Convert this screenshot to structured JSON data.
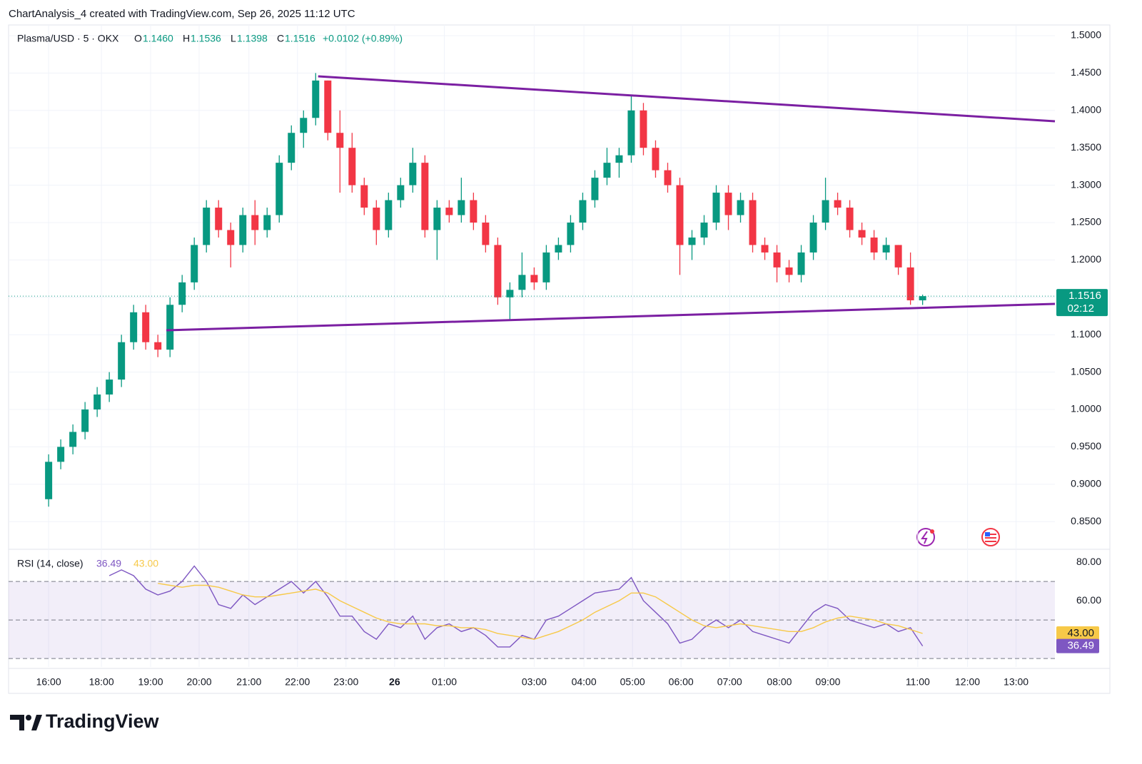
{
  "header": {
    "title": "ChartAnalysis_4 created with TradingView.com, Sep 26, 2025 11:12 UTC"
  },
  "brand": "TradingView",
  "chart_data": [
    {
      "type": "candlestick",
      "legend": {
        "symbol": "Plasma/USD · 5 · OKX",
        "o_label": "O",
        "open": "1.1460",
        "h_label": "H",
        "high": "1.1536",
        "l_label": "L",
        "low": "1.1398",
        "c_label": "C",
        "close": "1.1516",
        "change": "+0.0102 (+0.89%)"
      },
      "price_tag": {
        "label": "1.1516",
        "countdown": "02:12"
      },
      "up_color": "#089981",
      "down_color": "#f23645",
      "grid": true,
      "x": [
        3,
        4,
        5,
        6,
        7,
        8,
        9,
        10,
        11,
        12,
        13,
        14,
        15,
        16,
        17,
        18,
        19,
        20,
        21,
        22,
        23,
        24,
        25,
        26,
        27,
        28,
        29,
        30,
        31,
        32,
        33,
        34,
        35,
        36,
        37,
        38,
        39,
        40,
        41,
        42,
        43,
        44,
        45,
        46,
        47,
        48,
        49,
        50,
        51,
        52,
        53,
        54,
        55,
        56,
        57,
        58,
        59,
        60,
        61,
        62,
        63,
        64,
        65,
        66,
        67,
        68,
        69,
        70,
        71,
        72,
        73,
        74,
        75
      ],
      "ohlc": [
        [
          0.88,
          0.94,
          0.87,
          0.93
        ],
        [
          0.93,
          0.96,
          0.92,
          0.95
        ],
        [
          0.95,
          0.98,
          0.94,
          0.97
        ],
        [
          0.97,
          1.01,
          0.96,
          1.0
        ],
        [
          1.0,
          1.03,
          0.99,
          1.02
        ],
        [
          1.02,
          1.05,
          1.01,
          1.04
        ],
        [
          1.04,
          1.1,
          1.03,
          1.09
        ],
        [
          1.09,
          1.14,
          1.08,
          1.13
        ],
        [
          1.13,
          1.14,
          1.08,
          1.09
        ],
        [
          1.09,
          1.1,
          1.07,
          1.08
        ],
        [
          1.08,
          1.15,
          1.07,
          1.14
        ],
        [
          1.14,
          1.18,
          1.13,
          1.17
        ],
        [
          1.17,
          1.23,
          1.16,
          1.22
        ],
        [
          1.22,
          1.28,
          1.21,
          1.27
        ],
        [
          1.27,
          1.28,
          1.23,
          1.24
        ],
        [
          1.24,
          1.25,
          1.19,
          1.22
        ],
        [
          1.22,
          1.27,
          1.21,
          1.26
        ],
        [
          1.26,
          1.28,
          1.22,
          1.24
        ],
        [
          1.24,
          1.27,
          1.23,
          1.26
        ],
        [
          1.26,
          1.34,
          1.25,
          1.33
        ],
        [
          1.33,
          1.38,
          1.32,
          1.37
        ],
        [
          1.37,
          1.4,
          1.35,
          1.39
        ],
        [
          1.39,
          1.45,
          1.38,
          1.44
        ],
        [
          1.44,
          1.44,
          1.36,
          1.37
        ],
        [
          1.37,
          1.4,
          1.29,
          1.35
        ],
        [
          1.35,
          1.37,
          1.29,
          1.3
        ],
        [
          1.3,
          1.31,
          1.26,
          1.27
        ],
        [
          1.27,
          1.28,
          1.22,
          1.24
        ],
        [
          1.24,
          1.29,
          1.23,
          1.28
        ],
        [
          1.28,
          1.31,
          1.27,
          1.3
        ],
        [
          1.3,
          1.35,
          1.29,
          1.33
        ],
        [
          1.33,
          1.34,
          1.23,
          1.24
        ],
        [
          1.24,
          1.28,
          1.2,
          1.27
        ],
        [
          1.27,
          1.28,
          1.25,
          1.26
        ],
        [
          1.26,
          1.31,
          1.25,
          1.28
        ],
        [
          1.28,
          1.29,
          1.24,
          1.25
        ],
        [
          1.25,
          1.26,
          1.21,
          1.22
        ],
        [
          1.22,
          1.23,
          1.14,
          1.15
        ],
        [
          1.15,
          1.17,
          1.12,
          1.16
        ],
        [
          1.16,
          1.21,
          1.15,
          1.18
        ],
        [
          1.18,
          1.19,
          1.16,
          1.17
        ],
        [
          1.17,
          1.22,
          1.16,
          1.21
        ],
        [
          1.21,
          1.23,
          1.2,
          1.22
        ],
        [
          1.22,
          1.26,
          1.21,
          1.25
        ],
        [
          1.25,
          1.29,
          1.24,
          1.28
        ],
        [
          1.28,
          1.32,
          1.27,
          1.31
        ],
        [
          1.31,
          1.35,
          1.3,
          1.33
        ],
        [
          1.33,
          1.35,
          1.31,
          1.34
        ],
        [
          1.34,
          1.42,
          1.33,
          1.4
        ],
        [
          1.4,
          1.41,
          1.34,
          1.35
        ],
        [
          1.35,
          1.36,
          1.31,
          1.32
        ],
        [
          1.32,
          1.33,
          1.29,
          1.3
        ],
        [
          1.3,
          1.31,
          1.18,
          1.22
        ],
        [
          1.22,
          1.24,
          1.2,
          1.23
        ],
        [
          1.23,
          1.26,
          1.22,
          1.25
        ],
        [
          1.25,
          1.3,
          1.24,
          1.29
        ],
        [
          1.29,
          1.3,
          1.24,
          1.26
        ],
        [
          1.26,
          1.29,
          1.25,
          1.28
        ],
        [
          1.28,
          1.29,
          1.21,
          1.22
        ],
        [
          1.22,
          1.23,
          1.2,
          1.21
        ],
        [
          1.21,
          1.22,
          1.17,
          1.19
        ],
        [
          1.19,
          1.2,
          1.17,
          1.18
        ],
        [
          1.18,
          1.22,
          1.17,
          1.21
        ],
        [
          1.21,
          1.26,
          1.2,
          1.25
        ],
        [
          1.25,
          1.31,
          1.24,
          1.28
        ],
        [
          1.28,
          1.29,
          1.26,
          1.27
        ],
        [
          1.27,
          1.28,
          1.23,
          1.24
        ],
        [
          1.24,
          1.25,
          1.22,
          1.23
        ],
        [
          1.23,
          1.24,
          1.2,
          1.21
        ],
        [
          1.21,
          1.23,
          1.2,
          1.22
        ],
        [
          1.22,
          1.22,
          1.18,
          1.19
        ],
        [
          1.19,
          1.21,
          1.14,
          1.146
        ],
        [
          1.146,
          1.1536,
          1.1398,
          1.1516
        ]
      ],
      "trendlines": [
        {
          "color": "#7b1fa2",
          "x": [
            25.2,
            85.9
          ],
          "y": [
            1.4456,
            1.3855
          ]
        },
        {
          "color": "#7b1fa2",
          "x": [
            12.7,
            85.9
          ],
          "y": [
            1.1059,
            1.1412
          ]
        }
      ],
      "xlim": [
        -0.3,
        85.9
      ],
      "xticks": [
        {
          "value": 3,
          "label": "16:00"
        },
        {
          "value": 7.35,
          "label": "18:00"
        },
        {
          "value": 11.4,
          "label": "19:00"
        },
        {
          "value": 15.4,
          "label": "20:00"
        },
        {
          "value": 19.5,
          "label": "21:00"
        },
        {
          "value": 23.5,
          "label": "22:00"
        },
        {
          "value": 27.5,
          "label": "23:00"
        },
        {
          "value": 31.5,
          "label": "26"
        },
        {
          "value": 35.6,
          "label": "01:00"
        },
        {
          "value": 43,
          "label": "03:00"
        },
        {
          "value": 47.1,
          "label": "04:00"
        },
        {
          "value": 51.1,
          "label": "05:00"
        },
        {
          "value": 55.1,
          "label": "06:00"
        },
        {
          "value": 59.1,
          "label": "07:00"
        },
        {
          "value": 63.2,
          "label": "08:00"
        },
        {
          "value": 67.2,
          "label": "09:00"
        },
        {
          "value": 74.6,
          "label": "11:00"
        },
        {
          "value": 78.7,
          "label": "12:00"
        },
        {
          "value": 82.7,
          "label": "13:00"
        }
      ],
      "ylim": [
        0.813,
        1.5143
      ],
      "yticks": [
        {
          "value": 1.5,
          "label": "1.5000"
        },
        {
          "value": 1.45,
          "label": "1.4500"
        },
        {
          "value": 1.4,
          "label": "1.4000"
        },
        {
          "value": 1.35,
          "label": "1.3500"
        },
        {
          "value": 1.3,
          "label": "1.3000"
        },
        {
          "value": 1.25,
          "label": "1.2500"
        },
        {
          "value": 1.2,
          "label": "1.2000"
        },
        {
          "value": 1.15,
          "label": "1.1500"
        },
        {
          "value": 1.1,
          "label": "1.1000"
        },
        {
          "value": 1.05,
          "label": "1.0500"
        },
        {
          "value": 1.0,
          "label": "1.0000"
        },
        {
          "value": 0.95,
          "label": "0.9500"
        },
        {
          "value": 0.9,
          "label": "0.9000"
        },
        {
          "value": 0.85,
          "label": "0.8500"
        }
      ]
    },
    {
      "type": "line",
      "title": "RSI (14, close)",
      "x": [
        3,
        4,
        5,
        6,
        7,
        8,
        9,
        10,
        11,
        12,
        13,
        14,
        15,
        16,
        17,
        18,
        19,
        20,
        21,
        22,
        23,
        24,
        25,
        26,
        27,
        28,
        29,
        30,
        31,
        32,
        33,
        34,
        35,
        36,
        37,
        38,
        39,
        40,
        41,
        42,
        43,
        44,
        45,
        46,
        47,
        48,
        49,
        50,
        51,
        52,
        53,
        54,
        55,
        56,
        57,
        58,
        59,
        60,
        61,
        62,
        63,
        64,
        65,
        66,
        67,
        68,
        69,
        70,
        71,
        72,
        73,
        74,
        75
      ],
      "xlim": [
        -0.3,
        85.9
      ],
      "series": [
        {
          "name": "RSI",
          "color": "#7e57c2",
          "last_label": "36.49",
          "values": [
            null,
            null,
            null,
            null,
            null,
            73,
            76,
            73,
            66,
            63,
            65,
            70,
            78,
            70,
            58,
            56,
            63,
            58,
            62,
            66,
            70,
            64,
            70,
            62,
            52,
            52,
            44,
            40,
            48,
            46,
            52,
            40,
            46,
            48,
            44,
            46,
            42,
            36,
            36,
            42,
            40,
            50,
            52,
            56,
            60,
            64,
            65,
            66,
            72,
            60,
            54,
            48,
            38,
            40,
            46,
            50,
            46,
            50,
            44,
            42,
            40,
            38,
            46,
            54,
            58,
            56,
            50,
            48,
            46,
            48,
            44,
            46,
            36.49
          ]
        },
        {
          "name": "RSI-based MA",
          "color": "#f7c948",
          "last_label": "43.00",
          "values": [
            null,
            null,
            null,
            null,
            null,
            null,
            null,
            null,
            null,
            69,
            68,
            67,
            68,
            68,
            67,
            65,
            63,
            62,
            62,
            63,
            64,
            65,
            66,
            64,
            60,
            57,
            54,
            51,
            49,
            48,
            48,
            48,
            47,
            47,
            46,
            46,
            45,
            43,
            42,
            41,
            40,
            42,
            44,
            47,
            50,
            54,
            57,
            60,
            64,
            64,
            62,
            58,
            54,
            50,
            47,
            46,
            47,
            48,
            47,
            46,
            45,
            44,
            44,
            46,
            49,
            51,
            52,
            51,
            50,
            48,
            47,
            45,
            43
          ]
        }
      ],
      "band": [
        30,
        70
      ],
      "midline": 50,
      "band_color": "#7e57c2",
      "ylim": [
        25.6,
        86.7
      ],
      "yticks": [
        {
          "value": 80,
          "label": "80.00"
        },
        {
          "value": 60,
          "label": "60.00"
        }
      ]
    }
  ]
}
